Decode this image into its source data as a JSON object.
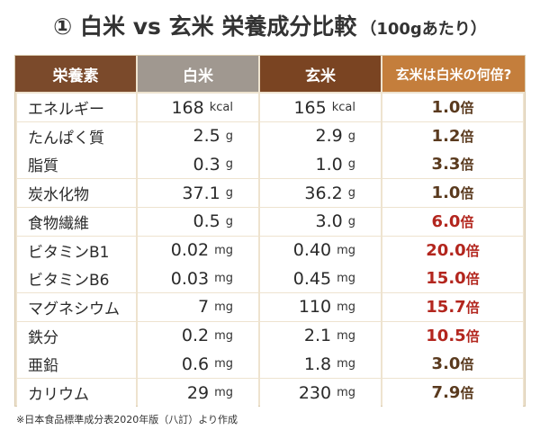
{
  "title": {
    "main": "① 白米 vs 玄米 栄養成分比較",
    "sub": "（100gあたり）"
  },
  "headers": [
    "栄養素",
    "白米",
    "玄米",
    "玄米は白米の何倍?"
  ],
  "rows": [
    {
      "nutrient": "エネルギー",
      "white": "168",
      "white_unit": "kcal",
      "brown": "165",
      "brown_unit": "kcal",
      "ratio": "1.0",
      "ratio_suffix": "倍",
      "highlight": false
    },
    {
      "nutrient": "たんぱく質",
      "white": "2.5",
      "white_unit": "g",
      "brown": "2.9",
      "brown_unit": "g",
      "ratio": "1.2",
      "ratio_suffix": "倍",
      "highlight": false
    },
    {
      "nutrient": "脂質",
      "white": "0.3",
      "white_unit": "g",
      "brown": "1.0",
      "brown_unit": "g",
      "ratio": "3.3",
      "ratio_suffix": "倍",
      "highlight": false
    },
    {
      "nutrient": "炭水化物",
      "white": "37.1",
      "white_unit": "g",
      "brown": "36.2",
      "brown_unit": "g",
      "ratio": "1.0",
      "ratio_suffix": "倍",
      "highlight": false
    },
    {
      "nutrient": "食物繊維",
      "white": "0.5",
      "white_unit": "g",
      "brown": "3.0",
      "brown_unit": "g",
      "ratio": "6.0",
      "ratio_suffix": "倍",
      "highlight": true
    },
    {
      "nutrient": "ビタミンB1",
      "white": "0.02",
      "white_unit": "mg",
      "brown": "0.40",
      "brown_unit": "mg",
      "ratio": "20.0",
      "ratio_suffix": "倍",
      "highlight": true
    },
    {
      "nutrient": "ビタミンB6",
      "white": "0.03",
      "white_unit": "mg",
      "brown": "0.45",
      "brown_unit": "mg",
      "ratio": "15.0",
      "ratio_suffix": "倍",
      "highlight": true
    },
    {
      "nutrient": "マグネシウム",
      "white": "7",
      "white_unit": "mg",
      "brown": "110",
      "brown_unit": "mg",
      "ratio": "15.7",
      "ratio_suffix": "倍",
      "highlight": true
    },
    {
      "nutrient": "鉄分",
      "white": "0.2",
      "white_unit": "mg",
      "brown": "2.1",
      "brown_unit": "mg",
      "ratio": "10.5",
      "ratio_suffix": "倍",
      "highlight": true
    },
    {
      "nutrient": "亜鉛",
      "white": "0.6",
      "white_unit": "mg",
      "brown": "1.8",
      "brown_unit": "mg",
      "ratio": "3.0",
      "ratio_suffix": "倍",
      "highlight": false
    },
    {
      "nutrient": "カリウム",
      "white": "29",
      "white_unit": "mg",
      "brown": "230",
      "brown_unit": "mg",
      "ratio": "7.9",
      "ratio_suffix": "倍",
      "highlight": false
    }
  ],
  "footnote": "※日本食品標準成分表2020年版（八訂）より作成",
  "colors": {
    "highlight_ratio": "#b3261e",
    "normal_ratio": "#5a3a1e",
    "header_nutrient": "#7b4a2b",
    "header_white": "#a09890",
    "header_brown": "#7a4422",
    "header_ratio": "#c47e3c",
    "table_bg": "#eee3cf"
  }
}
